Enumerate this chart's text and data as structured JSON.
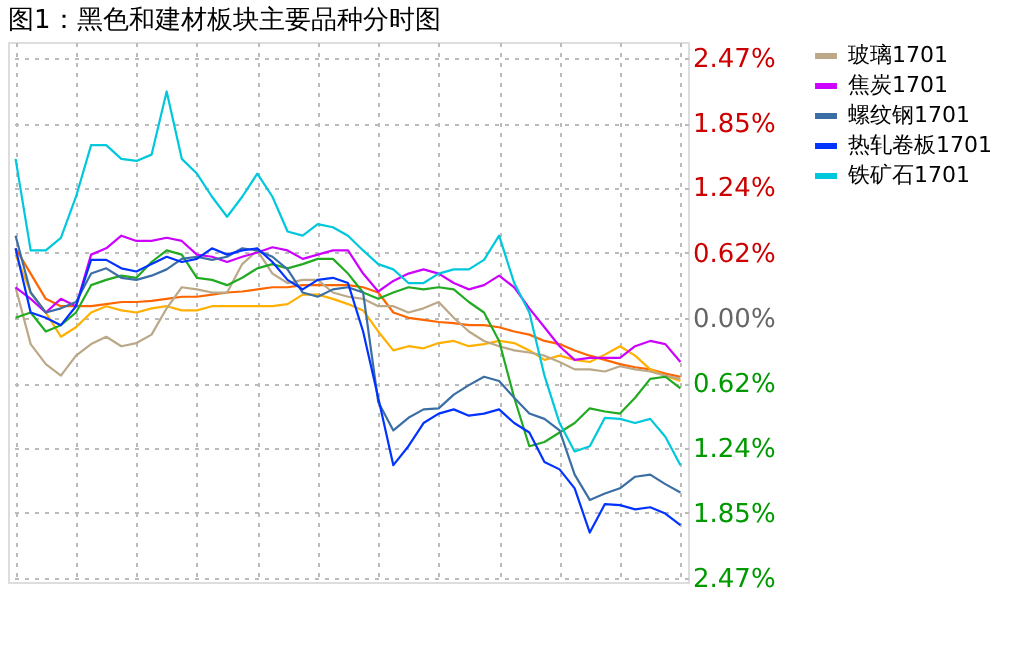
{
  "chart_data": {
    "type": "line",
    "title": "图1：黑色和建材板块主要品种分时图",
    "categories": [
      null,
      null,
      null,
      null,
      null,
      null,
      null,
      null,
      null,
      null,
      null,
      null,
      null,
      null,
      null,
      null,
      null,
      null,
      null,
      null,
      null,
      null,
      null,
      null,
      null,
      null,
      null,
      null,
      null,
      null,
      null,
      null,
      null,
      null,
      null,
      null,
      null,
      null,
      null,
      null,
      null,
      null,
      null,
      null,
      null
    ],
    "series": [
      {
        "name": null,
        "color": "#ff6600",
        "values": [
          0.66,
          0.42,
          0.18,
          0.11,
          0.11,
          0.11,
          0.13,
          0.15,
          0.15,
          0.16,
          0.18,
          0.2,
          0.2,
          0.22,
          0.24,
          0.25,
          0.27,
          0.29,
          0.29,
          0.31,
          0.31,
          0.31,
          0.31,
          0.29,
          0.24,
          0.05,
          0,
          -0.02,
          -0.04,
          -0.05,
          -0.07,
          -0.07,
          -0.09,
          -0.13,
          -0.16,
          -0.22,
          -0.25,
          -0.31,
          -0.36,
          -0.4,
          -0.44,
          -0.47,
          -0.49,
          -0.53,
          -0.56
        ]
      },
      {
        "name": null,
        "color": "#ffb000",
        "values": [
          0.6,
          0.24,
          0.05,
          -0.18,
          -0.09,
          0.05,
          0.11,
          0.07,
          0.05,
          0.09,
          0.11,
          0.07,
          0.07,
          0.11,
          0.11,
          0.11,
          0.11,
          0.11,
          0.13,
          0.22,
          0.22,
          0.18,
          0.13,
          0.07,
          -0.13,
          -0.31,
          -0.27,
          -0.29,
          -0.24,
          -0.22,
          -0.27,
          -0.25,
          -0.22,
          -0.24,
          -0.31,
          -0.4,
          -0.36,
          -0.4,
          -0.42,
          -0.35,
          -0.27,
          -0.36,
          -0.49,
          -0.55,
          -0.6
        ]
      },
      {
        "name": "玻璃1701",
        "color": "#bba888",
        "values": [
          0.29,
          -0.25,
          -0.44,
          -0.55,
          -0.36,
          -0.25,
          -0.18,
          -0.27,
          -0.24,
          -0.16,
          0.09,
          0.29,
          0.27,
          0.24,
          0.24,
          0.51,
          0.64,
          0.42,
          0.33,
          0.36,
          0.36,
          0.24,
          0.2,
          0.18,
          0.11,
          0.11,
          0.05,
          0.09,
          0.15,
          0,
          -0.13,
          -0.22,
          -0.27,
          -0.31,
          -0.33,
          -0.36,
          -0.42,
          -0.49,
          -0.49,
          -0.51,
          -0.46,
          -0.49,
          -0.51,
          -0.55,
          -0.58
        ]
      },
      {
        "name": null,
        "color": "#22aa22",
        "values": [
          0,
          0.05,
          -0.13,
          -0.07,
          0.05,
          0.31,
          0.36,
          0.4,
          0.38,
          0.53,
          0.64,
          0.6,
          0.38,
          0.36,
          0.31,
          0.38,
          0.47,
          0.51,
          0.47,
          0.51,
          0.56,
          0.56,
          0.42,
          0.24,
          0.18,
          0.24,
          0.29,
          0.27,
          0.29,
          0.27,
          0.15,
          0.05,
          -0.22,
          -0.76,
          -1.22,
          -1.18,
          -1.09,
          -1.0,
          -0.86,
          -0.89,
          -0.91,
          -0.76,
          -0.58,
          -0.56,
          -0.67
        ]
      },
      {
        "name": "焦炭1701",
        "color": "#cc00ff",
        "values": [
          0.29,
          0.18,
          0.05,
          0.18,
          0.11,
          0.6,
          0.66,
          0.78,
          0.73,
          0.73,
          0.76,
          0.73,
          0.6,
          0.58,
          0.53,
          0.58,
          0.62,
          0.67,
          0.64,
          0.56,
          0.6,
          0.64,
          0.64,
          0.42,
          0.25,
          0.35,
          0.42,
          0.46,
          0.42,
          0.33,
          0.27,
          0.31,
          0.4,
          0.29,
          0.09,
          -0.09,
          -0.27,
          -0.4,
          -0.38,
          -0.38,
          -0.38,
          -0.27,
          -0.22,
          -0.25,
          -0.42
        ]
      },
      {
        "name": "螺纹钢1701",
        "color": "#3a6ea5",
        "values": [
          0.78,
          0.24,
          0.05,
          0.09,
          0.15,
          0.42,
          0.47,
          0.38,
          0.36,
          0.4,
          0.46,
          0.56,
          0.58,
          0.55,
          0.58,
          0.66,
          0.64,
          0.58,
          0.46,
          0.24,
          0.2,
          0.27,
          0.29,
          0.24,
          -0.8,
          -1.07,
          -0.95,
          -0.87,
          -0.86,
          -0.73,
          -0.64,
          -0.56,
          -0.6,
          -0.76,
          -0.91,
          -0.96,
          -1.07,
          -1.49,
          -1.73,
          -1.67,
          -1.62,
          -1.51,
          -1.49,
          -1.58,
          -1.66
        ]
      },
      {
        "name": "热轧卷板1701",
        "color": "#0033ff",
        "values": [
          0.66,
          0.05,
          0,
          -0.07,
          0.11,
          0.55,
          0.55,
          0.47,
          0.44,
          0.51,
          0.58,
          0.53,
          0.56,
          0.66,
          0.6,
          0.64,
          0.66,
          0.53,
          0.36,
          0.27,
          0.36,
          0.38,
          0.33,
          -0.13,
          -0.76,
          -1.4,
          -1.22,
          -1.0,
          -0.91,
          -0.87,
          -0.93,
          -0.91,
          -0.87,
          -1.0,
          -1.09,
          -1.37,
          -1.44,
          -1.62,
          -2.04,
          -1.77,
          -1.78,
          -1.82,
          -1.8,
          -1.86,
          -1.97
        ]
      },
      {
        "name": "铁矿石1701",
        "color": "#00c8dc",
        "values": [
          1.51,
          0.64,
          0.64,
          0.76,
          1.15,
          1.64,
          1.64,
          1.51,
          1.49,
          1.55,
          2.15,
          1.51,
          1.37,
          1.15,
          0.96,
          1.15,
          1.37,
          1.15,
          0.82,
          0.78,
          0.89,
          0.86,
          0.78,
          0.64,
          0.51,
          0.46,
          0.33,
          0.33,
          0.42,
          0.46,
          0.46,
          0.55,
          0.78,
          0.33,
          0.05,
          -0.55,
          -1.0,
          -1.27,
          -1.22,
          -0.95,
          -0.96,
          -1.0,
          -0.96,
          -1.13,
          -1.4
        ]
      }
    ],
    "ylim": [
      -2.51,
      2.62
    ],
    "yticks": [
      {
        "value": 2.47,
        "label": "2.47%"
      },
      {
        "value": 1.85,
        "label": "1.85%"
      },
      {
        "value": 1.24,
        "label": "1.24%"
      },
      {
        "value": 0.62,
        "label": "0.62%"
      },
      {
        "value": 0,
        "label": "0.00%"
      },
      {
        "value": -0.62,
        "label": "0.62%"
      },
      {
        "value": -1.24,
        "label": "1.24%"
      },
      {
        "value": -1.85,
        "label": "1.85%"
      },
      {
        "value": -2.47,
        "label": "2.47%"
      }
    ],
    "tick_labels": "y",
    "grid": true,
    "legend": "right",
    "line_style": "solid",
    "marker": "none"
  }
}
